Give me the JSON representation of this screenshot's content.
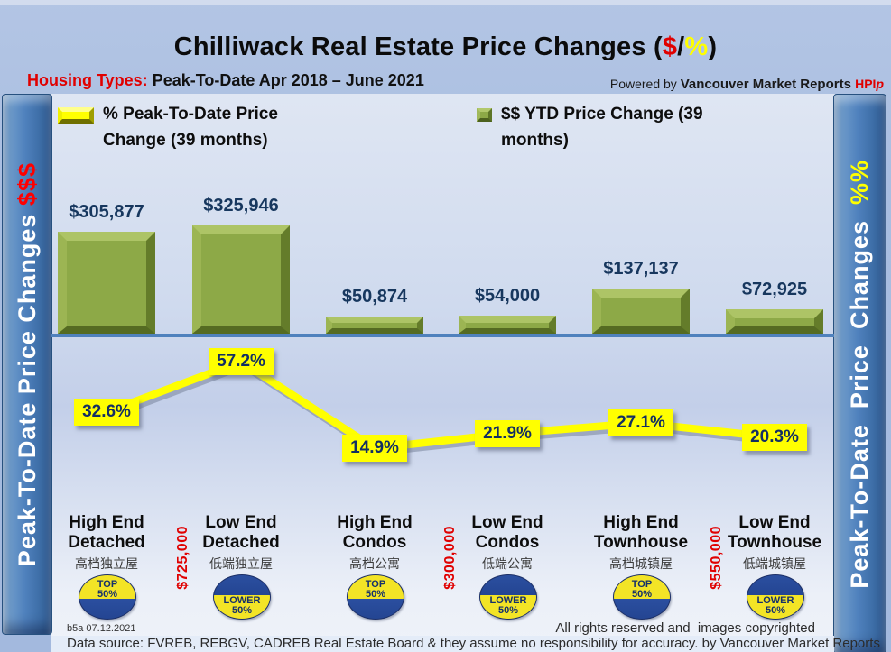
{
  "header": {
    "title_prefix": "Chilliwack Real Estate Price Changes (",
    "title_dollar": "$",
    "title_slash": "/",
    "title_percent": "%",
    "title_suffix": ")",
    "subtitle_label": "Housing Types:",
    "subtitle_text": " Peak-To-Date Apr 2018 – June 2021",
    "powered_prefix": "Powered by ",
    "powered_brand": "Vancouver Market Reports ",
    "powered_hpi": "HPI",
    "powered_hpi_suffix": "p"
  },
  "legend": {
    "percent_label": "% Peak-To-Date Price Change (39 months)",
    "dollar_label": "$$ YTD Price Change (39 months)"
  },
  "sidebar_left": {
    "text": "Peak-To-Date Price Changes ",
    "accent": "$$$"
  },
  "sidebar_right": {
    "text": "Peak-To-Date  Price  Changes  ",
    "accent": "%%"
  },
  "chart_data": {
    "type": "combo-bar-line",
    "categories": [
      "High End Detached",
      "Low End Detached",
      "High End Condos",
      "Low End Condos",
      "High End Townhouse",
      "Low End Townhouse"
    ],
    "categories_zh": [
      "高档独立屋",
      "低端独立屋",
      "高档公寓",
      "低端公寓",
      "高档城镇屋",
      "低端城镇屋"
    ],
    "series": [
      {
        "name": "$$ YTD Price Change (39 months)",
        "type": "bar",
        "color": "#8da947",
        "values": [
          305877,
          325946,
          50874,
          54000,
          137137,
          72925
        ],
        "value_labels": [
          "$305,877",
          "$325,946",
          "$50,874",
          "$54,000",
          "$137,137",
          "$72,925"
        ]
      },
      {
        "name": "% Peak-To-Date Price Change (39 months)",
        "type": "line",
        "color": "#ffff00",
        "values": [
          32.6,
          57.2,
          14.9,
          21.9,
          27.1,
          20.3
        ],
        "value_labels": [
          "32.6%",
          "57.2%",
          "14.9%",
          "21.9%",
          "27.1%",
          "20.3%"
        ]
      }
    ],
    "badges": [
      {
        "style": "top",
        "line1": "TOP",
        "line2": "50%"
      },
      {
        "style": "lower",
        "line1": "LOWER",
        "line2": "50%"
      },
      {
        "style": "top",
        "line1": "TOP",
        "line2": "50%"
      },
      {
        "style": "lower",
        "line1": "LOWER",
        "line2": "50%"
      },
      {
        "style": "top",
        "line1": "TOP",
        "line2": "50%"
      },
      {
        "style": "lower",
        "line1": "LOWER",
        "line2": "50%"
      }
    ],
    "separators": [
      {
        "after_index": 0,
        "price": "$725,000"
      },
      {
        "after_index": 2,
        "price": "$300,000"
      },
      {
        "after_index": 4,
        "price": "$550,000"
      }
    ],
    "baseline_color": "#4f81bd",
    "legend_position": "top",
    "grid": false
  },
  "footer": {
    "code": "b5a 07.12.2021",
    "rights": "All rights reserved and  images copyrighted",
    "source": "Data source: FVREB, REBGV, CADREB Real Estate Board & they assume no responsibility for accuracy. by Vancouver Market Reports"
  },
  "colors": {
    "accent_red": "#e00000",
    "accent_yellow": "#ffff00",
    "bar_green": "#8da947",
    "navy_text": "#17375e",
    "sidebar_blue": "#4f81bd"
  }
}
